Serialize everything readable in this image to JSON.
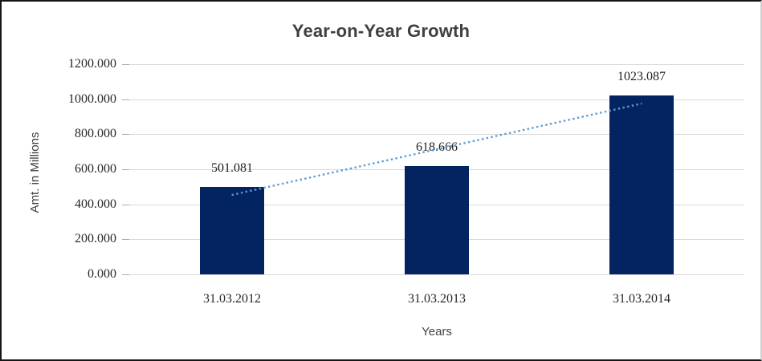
{
  "chart": {
    "title": "Year-on-Year Growth",
    "y_axis_title": "Amt. in Millions",
    "x_axis_title": "Years",
    "colors": {
      "bar": "#032361",
      "trendline": "#5B9BD5",
      "gridline": "#d9d9d9",
      "title_text": "#404040",
      "label_text": "#262626"
    }
  },
  "chart_data": {
    "type": "bar",
    "title": "Year-on-Year Growth",
    "xlabel": "Years",
    "ylabel": "Amt. in Millions",
    "categories": [
      "31.03.2012",
      "31.03.2013",
      "31.03.2014"
    ],
    "values": [
      501.081,
      618.666,
      1023.087
    ],
    "data_labels": [
      "501.081",
      "618.666",
      "1023.087"
    ],
    "y_tick_labels": [
      "1200.000",
      "1000.000",
      "800.000",
      "600.000",
      "400.000",
      "200.000",
      "0.000"
    ],
    "y_tick_values": [
      1200,
      1000,
      800,
      600,
      400,
      200,
      0
    ],
    "ylim": [
      0,
      1200
    ],
    "grid": true,
    "legend": "none",
    "bar_color": "#032361",
    "trendline": {
      "type": "linear",
      "style": "dotted",
      "color": "#5B9BD5",
      "endpoint_values": [
        453.275,
        975.281
      ]
    }
  }
}
